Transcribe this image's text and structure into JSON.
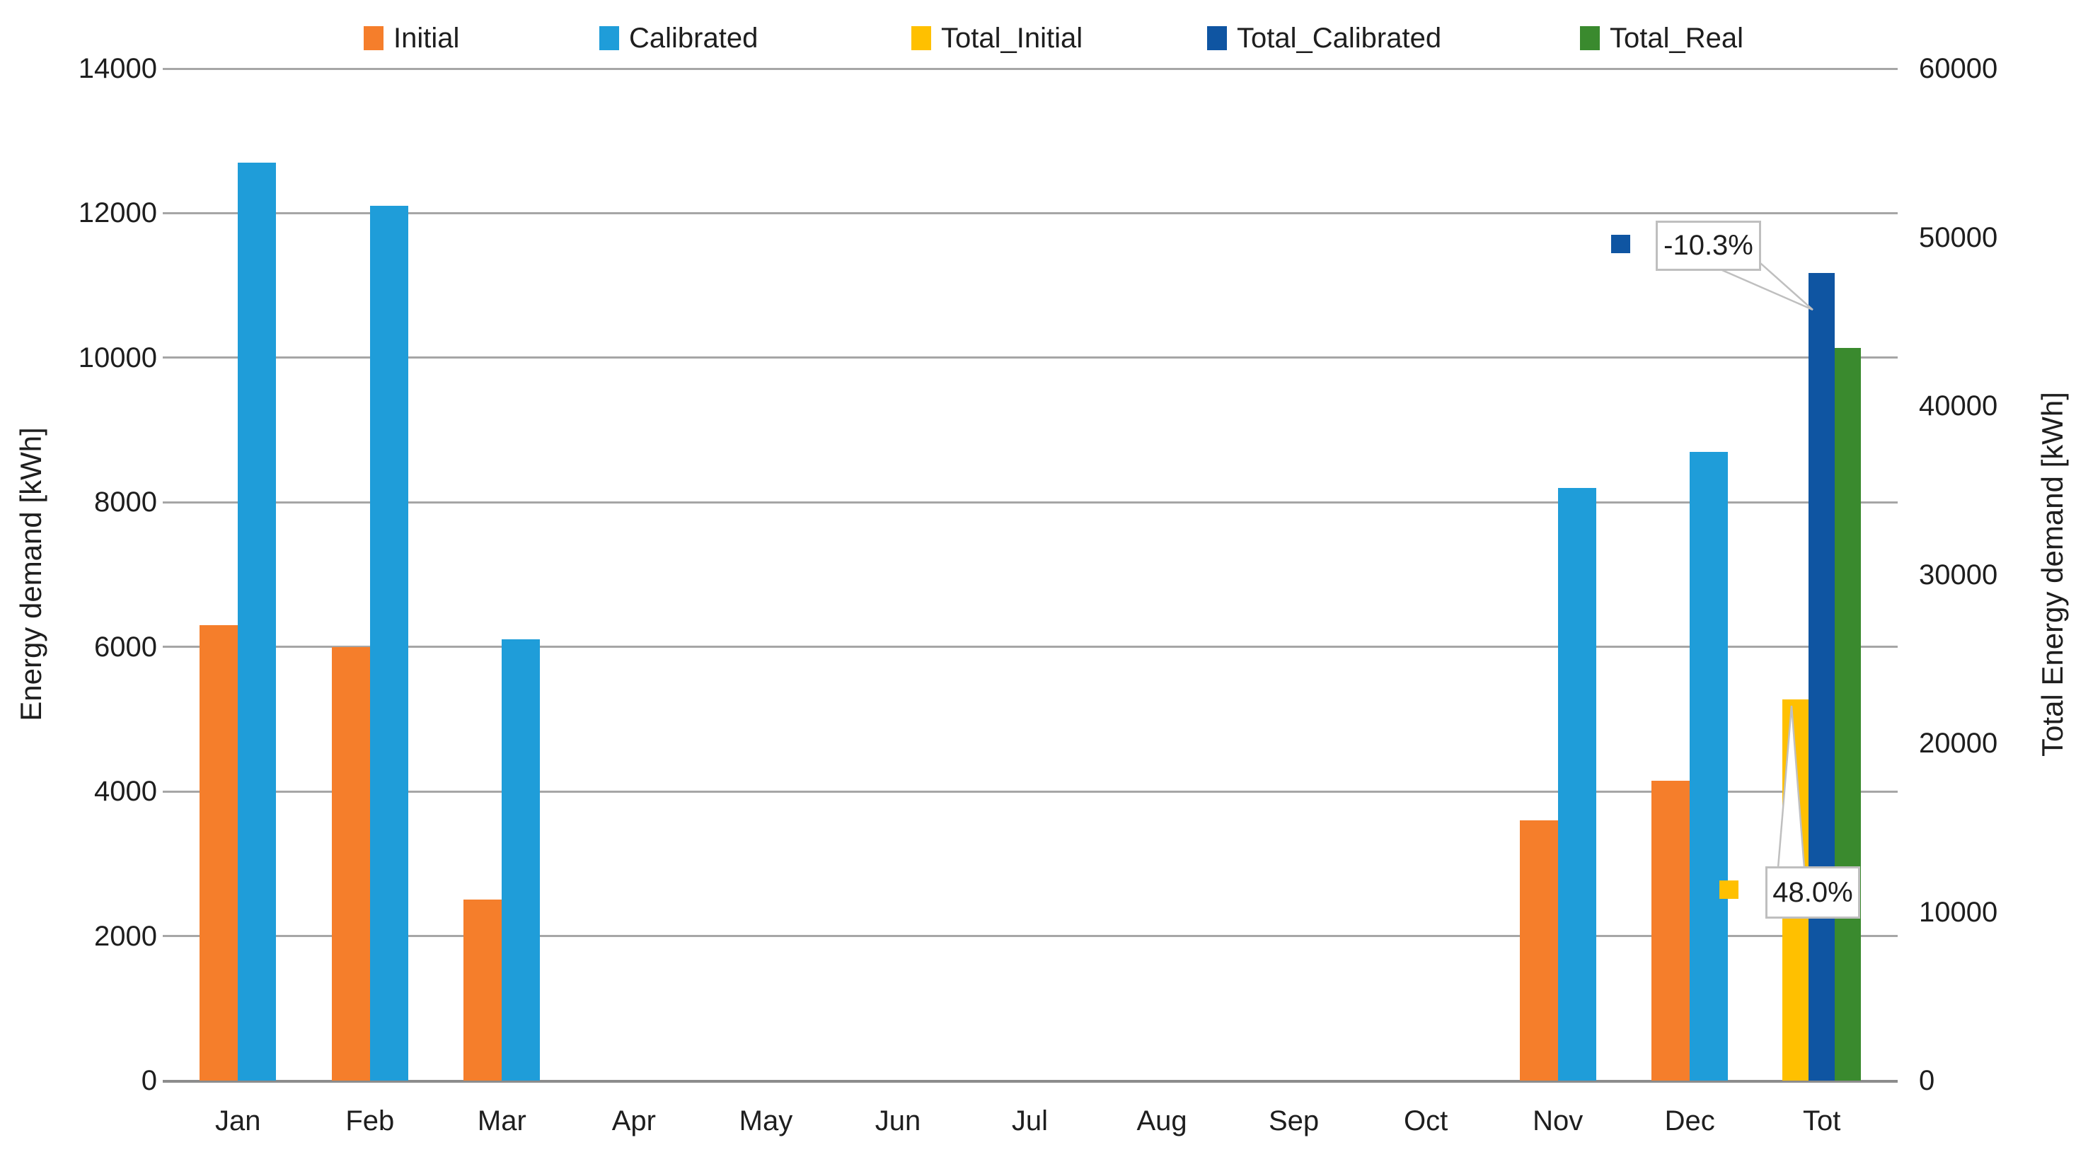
{
  "chart_data": {
    "type": "bar",
    "title": "",
    "categories": [
      "Jan",
      "Feb",
      "Mar",
      "Apr",
      "May",
      "Jun",
      "Jul",
      "Aug",
      "Sep",
      "Oct",
      "Nov",
      "Dec",
      "Tot"
    ],
    "primary_axis": {
      "label": "Energy demand [kWh]",
      "min": 0,
      "max": 14000,
      "step": 2000
    },
    "secondary_axis": {
      "label": "Total Energy demand [kWh]",
      "min": 0,
      "max": 60000,
      "step": 10000
    },
    "grid": true,
    "legend_position": "top",
    "series": [
      {
        "name": "Initial",
        "axis": "primary",
        "color": "#f57e2b",
        "values": [
          6300,
          6000,
          2500,
          null,
          null,
          null,
          null,
          null,
          null,
          null,
          3600,
          4150,
          null
        ]
      },
      {
        "name": "Calibrated",
        "axis": "primary",
        "color": "#1f9dd9",
        "values": [
          12700,
          12100,
          6100,
          null,
          null,
          null,
          null,
          null,
          null,
          null,
          8200,
          8700,
          null
        ]
      },
      {
        "name": "Total_Initial",
        "axis": "secondary",
        "color": "#ffc000",
        "values": [
          null,
          null,
          null,
          null,
          null,
          null,
          null,
          null,
          null,
          null,
          null,
          null,
          22600
        ]
      },
      {
        "name": "Total_Calibrated",
        "axis": "secondary",
        "color": "#0f55a2",
        "values": [
          null,
          null,
          null,
          null,
          null,
          null,
          null,
          null,
          null,
          null,
          null,
          null,
          47900
        ]
      },
      {
        "name": "Total_Real",
        "axis": "secondary",
        "color": "#3a8a2e",
        "values": [
          null,
          null,
          null,
          null,
          null,
          null,
          null,
          null,
          null,
          null,
          null,
          null,
          43450
        ]
      }
    ],
    "annotations": [
      {
        "text": "-10.3%",
        "target_series": "Total_Calibrated",
        "target_category": "Tot"
      },
      {
        "text": "48.0%",
        "target_series": "Total_Initial",
        "target_category": "Tot"
      }
    ]
  }
}
